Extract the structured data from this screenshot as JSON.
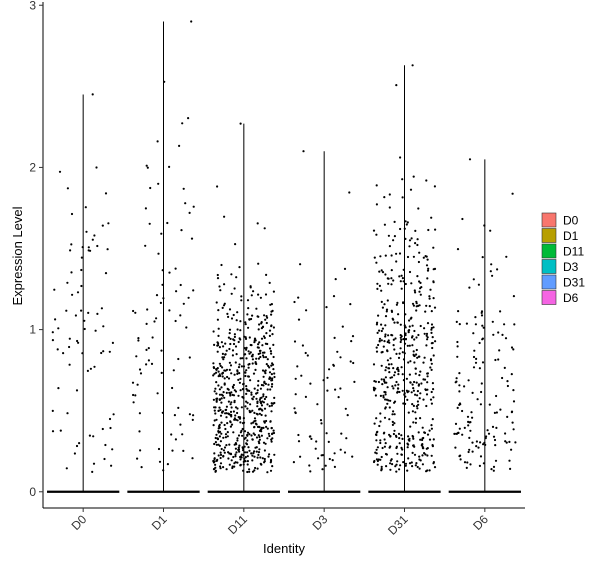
{
  "chart_data": {
    "type": "violin-scatter",
    "xlabel": "Identity",
    "ylabel": "Expression Level",
    "ylim": [
      -0.1,
      3.02
    ],
    "yticks": [
      0,
      1,
      2,
      3
    ],
    "grid": false,
    "legend_position": "right",
    "categories": [
      "D0",
      "D1",
      "D11",
      "D3",
      "D31",
      "D6"
    ],
    "series": [
      {
        "name": "D0",
        "color": "#F8766D",
        "max": 2.45,
        "n_nonzero": 80,
        "mean_nonzero": 1.1,
        "spread": 0.6
      },
      {
        "name": "D1",
        "color": "#B79F00",
        "max": 2.9,
        "n_nonzero": 90,
        "mean_nonzero": 1.0,
        "spread": 0.6
      },
      {
        "name": "D11",
        "color": "#00BA38",
        "max": 2.27,
        "n_nonzero": 650,
        "mean_nonzero": 0.55,
        "spread": 0.35
      },
      {
        "name": "D3",
        "color": "#00BFC4",
        "max": 2.1,
        "n_nonzero": 75,
        "mean_nonzero": 0.6,
        "spread": 0.45
      },
      {
        "name": "D31",
        "color": "#619CFF",
        "max": 2.63,
        "n_nonzero": 520,
        "mean_nonzero": 0.75,
        "spread": 0.5
      },
      {
        "name": "D6",
        "color": "#F564E3",
        "max": 2.05,
        "n_nonzero": 150,
        "mean_nonzero": 0.6,
        "spread": 0.45
      }
    ]
  }
}
